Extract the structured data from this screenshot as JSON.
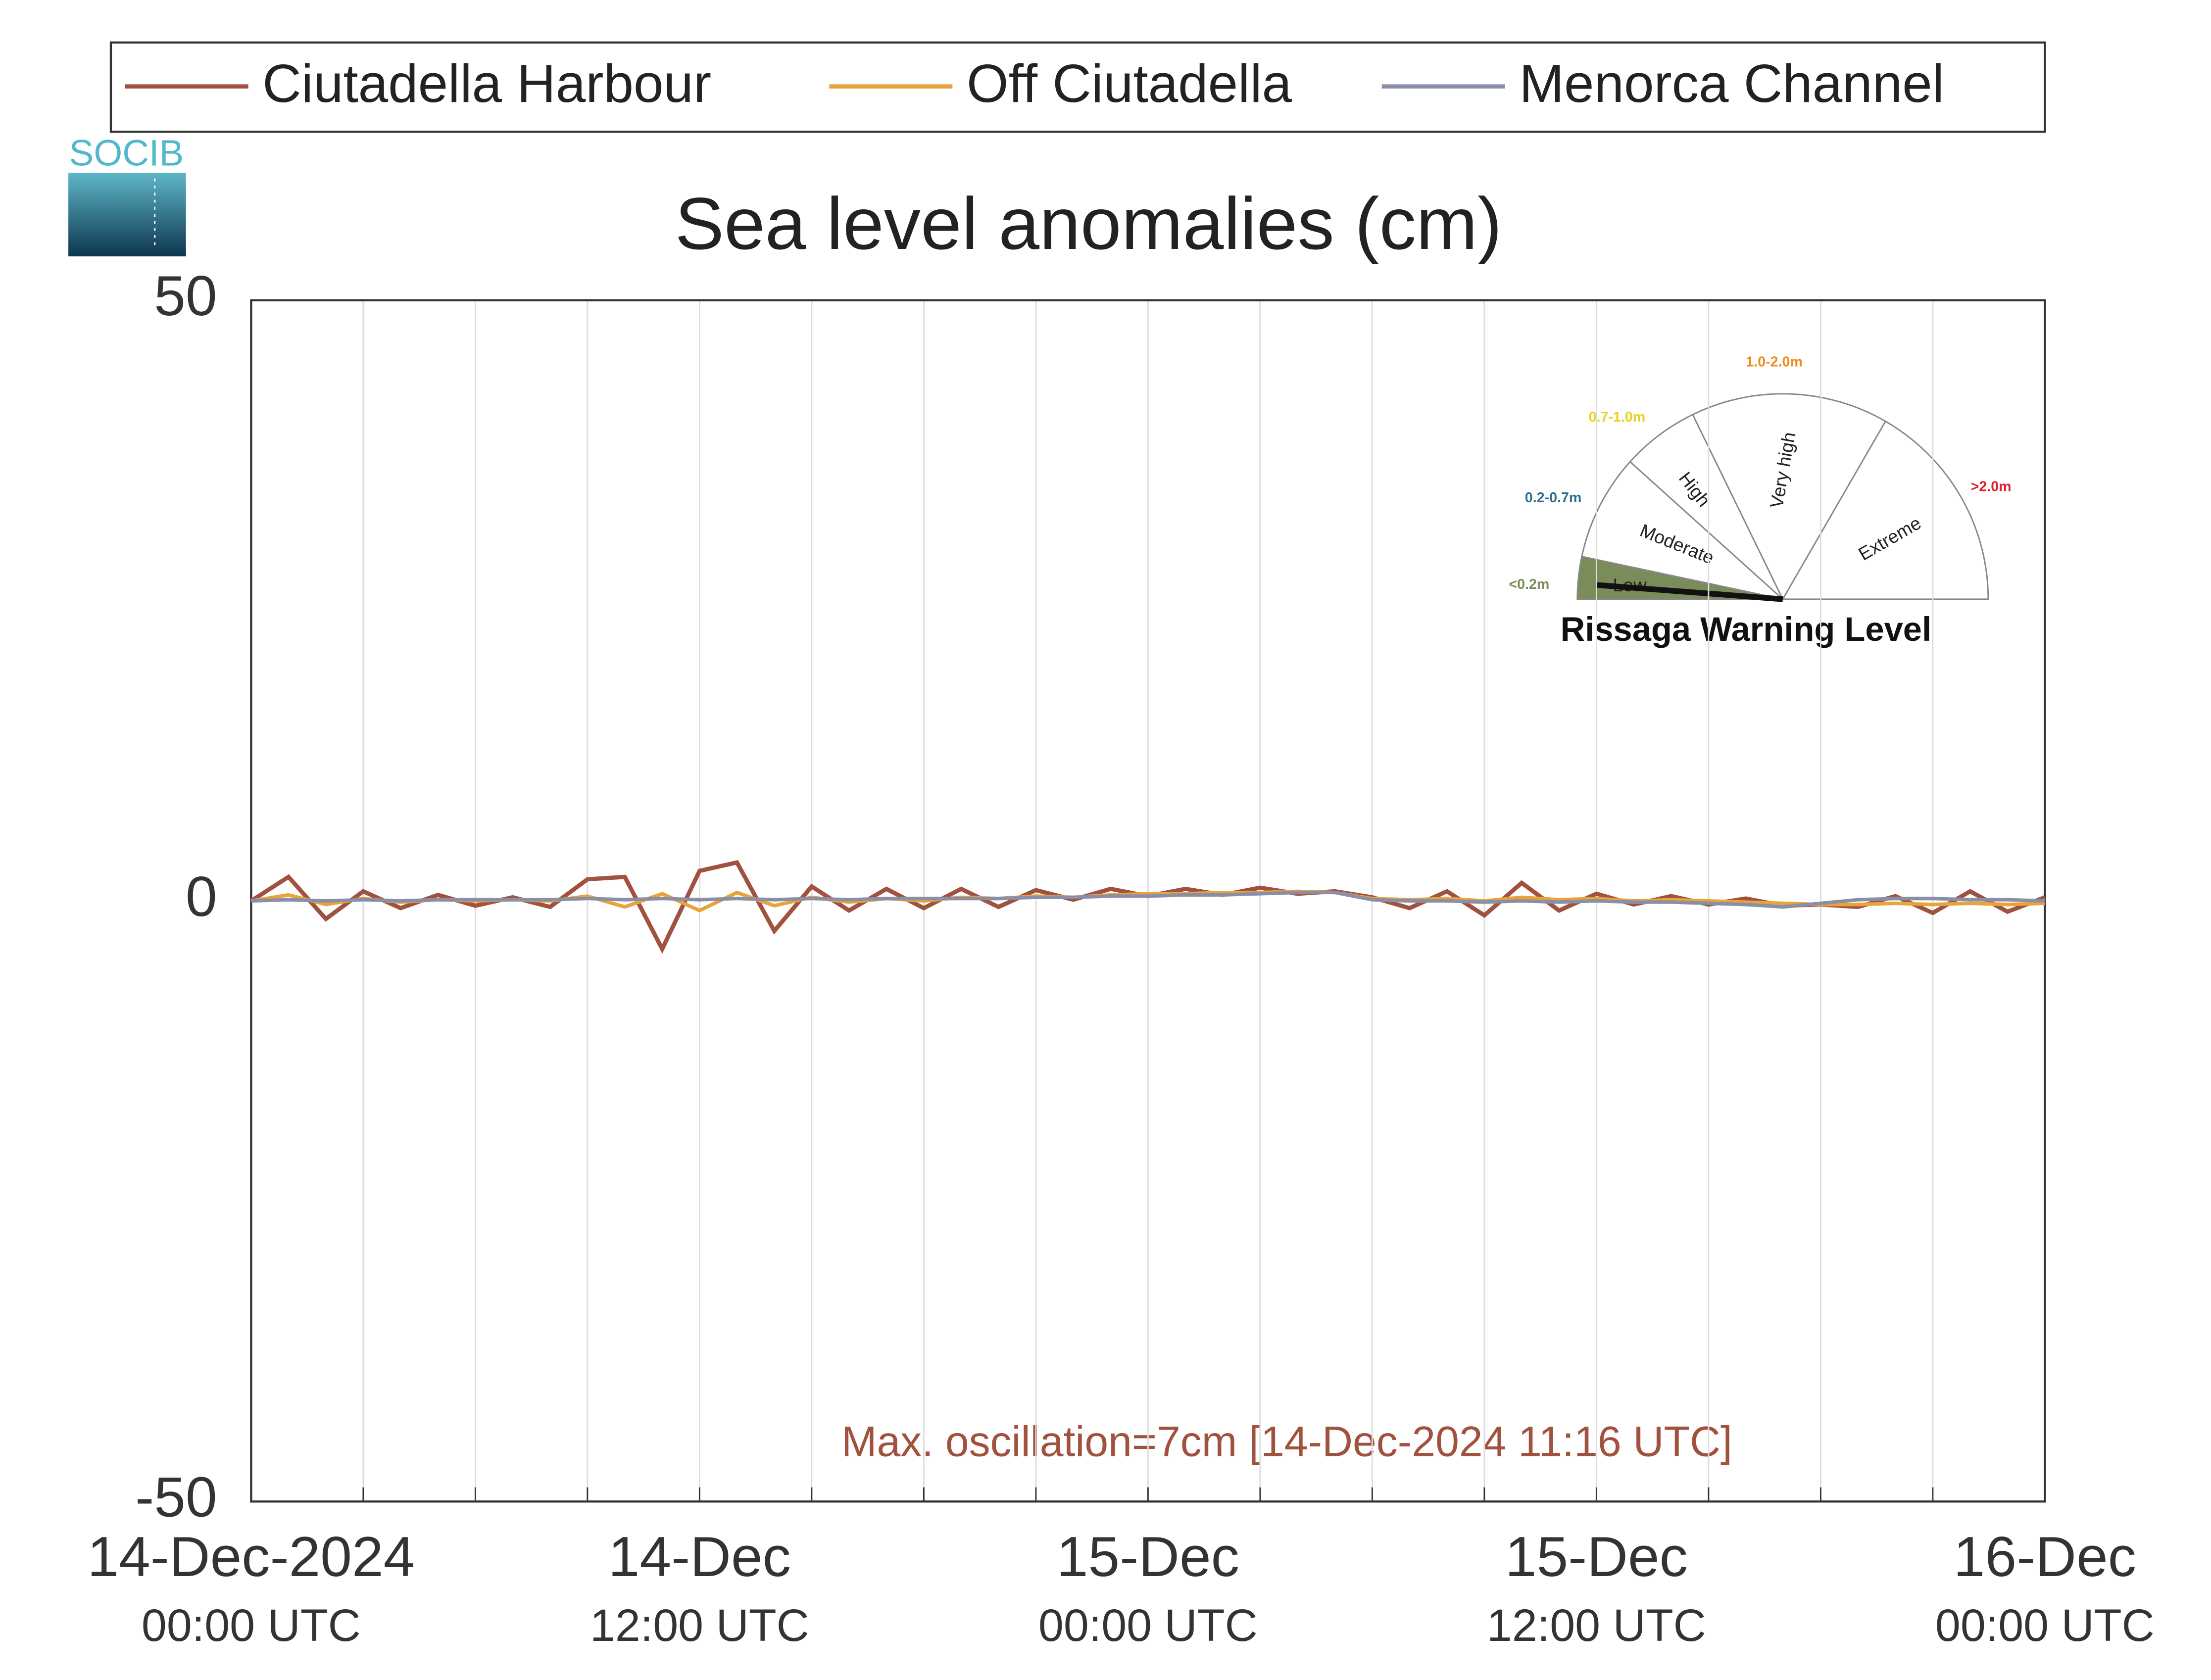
{
  "chart_data": {
    "type": "line",
    "title": "Sea level anomalies (cm)",
    "logo": "SOCIB",
    "annotation": "Max. oscillation=7cm [14-Dec-2024 11:16 UTC]",
    "x": [
      0,
      1,
      2,
      3,
      4,
      5,
      6,
      7,
      8,
      9,
      10,
      11,
      12,
      13,
      14,
      15,
      16,
      17,
      18,
      19,
      20,
      21,
      22,
      23,
      24,
      25,
      26,
      27,
      28,
      29,
      30,
      31,
      32,
      33,
      34,
      35,
      36,
      37,
      38,
      39,
      40,
      41,
      42,
      43,
      44,
      45,
      46,
      47,
      48
    ],
    "xlim": [
      0,
      48
    ],
    "xticks": [
      {
        "value": 0,
        "label": [
          "14-Dec-2024",
          "00:00 UTC"
        ]
      },
      {
        "value": 12,
        "label": [
          "14-Dec",
          "12:00 UTC"
        ]
      },
      {
        "value": 24,
        "label": [
          "15-Dec",
          "00:00 UTC"
        ]
      },
      {
        "value": 36,
        "label": [
          "15-Dec",
          "12:00 UTC"
        ]
      },
      {
        "value": 48,
        "label": [
          "16-Dec",
          "00:00 UTC"
        ]
      }
    ],
    "xminorticks": [
      3,
      6,
      9,
      15,
      18,
      21,
      27,
      30,
      33,
      39,
      42,
      45
    ],
    "ylim": [
      -50,
      50
    ],
    "yticks": [
      -50,
      0,
      50
    ],
    "grid": true,
    "legend": "top",
    "series": [
      {
        "name": "Ciutadella Harbour",
        "color": "#a0523f",
        "values": [
          0,
          2,
          -1.5,
          0.8,
          -0.6,
          0.5,
          -0.4,
          0.3,
          -0.5,
          1.8,
          2,
          -4,
          2.5,
          3.2,
          -2.5,
          1.2,
          -0.8,
          1,
          -0.6,
          1,
          -0.5,
          0.9,
          0.1,
          1,
          0.4,
          1,
          0.5,
          1.1,
          0.6,
          0.8,
          0.3,
          -0.6,
          0.8,
          -1.2,
          1.5,
          -0.8,
          0.6,
          -0.3,
          0.4,
          -0.3,
          0.2,
          -0.4,
          -0.3,
          -0.5,
          0.4,
          -1,
          0.8,
          -0.9,
          0.3
        ]
      },
      {
        "name": "Off Ciutadella",
        "color": "#e8a33a",
        "values": [
          0,
          0.5,
          -0.3,
          0.2,
          -0.1,
          0.1,
          0,
          0.1,
          0,
          0.4,
          -0.5,
          0.6,
          -0.8,
          0.7,
          -0.4,
          0.3,
          -0.1,
          0.2,
          0,
          0.3,
          0.2,
          0.4,
          0.3,
          0.5,
          0.6,
          0.6,
          0.7,
          0.7,
          0.8,
          0.7,
          0.2,
          0.1,
          0.2,
          0,
          0.3,
          0.1,
          0.2,
          0,
          0.1,
          0,
          -0.1,
          -0.2,
          -0.3,
          -0.3,
          -0.2,
          -0.3,
          -0.2,
          -0.3,
          -0.2
        ]
      },
      {
        "name": "Menorca Channel",
        "color": "#8a8fa8",
        "values": [
          0,
          0.1,
          0,
          0.1,
          0,
          0.1,
          0.1,
          0.1,
          0.1,
          0.2,
          0.1,
          0.2,
          0.1,
          0.2,
          0.1,
          0.2,
          0.1,
          0.2,
          0.2,
          0.2,
          0.2,
          0.3,
          0.3,
          0.4,
          0.4,
          0.5,
          0.5,
          0.6,
          0.7,
          0.7,
          0.1,
          0,
          0,
          -0.1,
          0,
          -0.1,
          0,
          -0.1,
          -0.1,
          -0.2,
          -0.3,
          -0.5,
          -0.2,
          0.1,
          0.2,
          0.2,
          0.1,
          0.1,
          0
        ]
      }
    ],
    "inset": {
      "title": "Rissaga Warning Level",
      "levels": [
        {
          "name": "Low",
          "range": "<0.2m",
          "color": "#7a8c5a"
        },
        {
          "name": "Moderate",
          "range": "0.2-0.7m",
          "color": "#2f6e8e"
        },
        {
          "name": "High",
          "range": "0.7-1.0m",
          "color": "#e8d21e"
        },
        {
          "name": "Very high",
          "range": "1.0-2.0m",
          "color": "#f08a1c"
        },
        {
          "name": "Extreme",
          "range": ">2.0m",
          "color": "#e0202a"
        }
      ]
    }
  }
}
